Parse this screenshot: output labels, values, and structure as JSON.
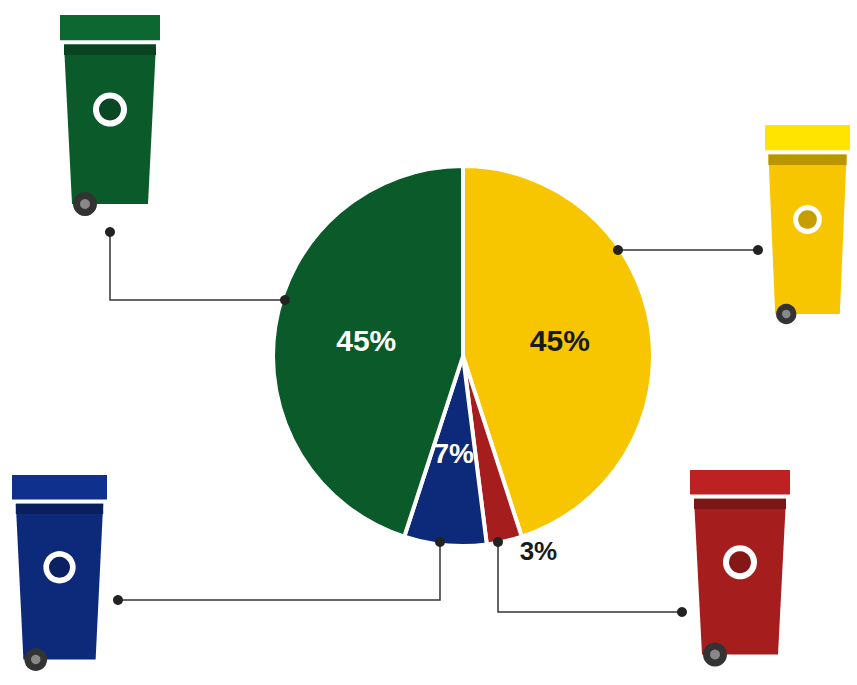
{
  "chart_data": {
    "type": "pie",
    "values": [
      45,
      3,
      7,
      45
    ],
    "value_labels": [
      "45%",
      "3%",
      "7%",
      "45%"
    ],
    "colors": [
      "#f7c600",
      "#a51d1d",
      "#0d2a7a",
      "#0b5a2a"
    ],
    "data_labels": true
  }
}
